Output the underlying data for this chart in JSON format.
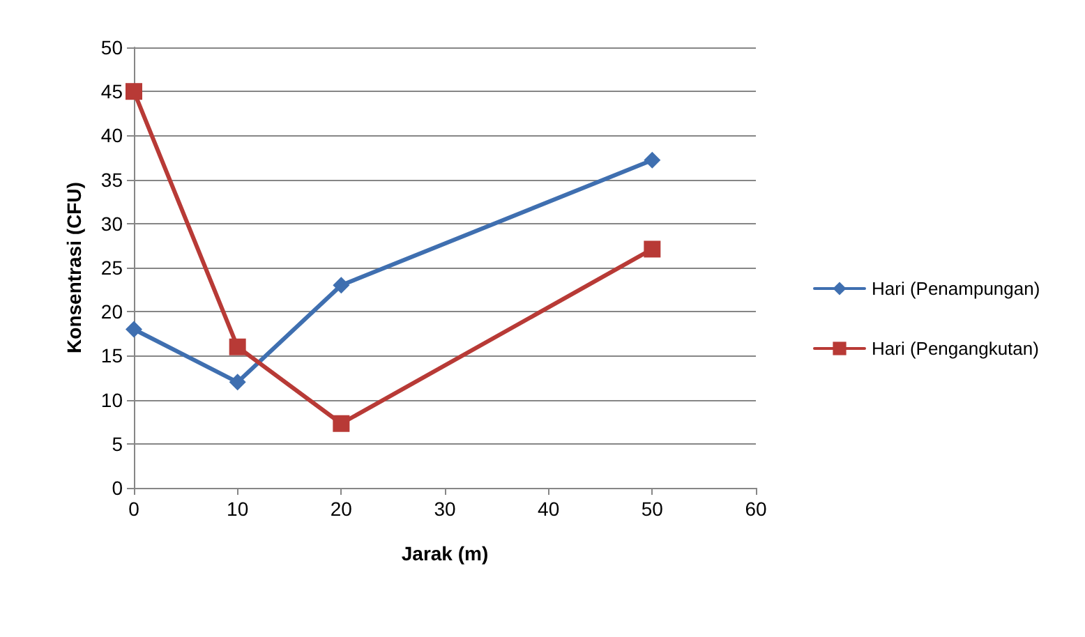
{
  "chart_data": {
    "type": "line",
    "xlabel": "Jarak (m)",
    "ylabel": "Konsentrasi (CFU)",
    "x": [
      0,
      10,
      20,
      50
    ],
    "series": [
      {
        "name": "Hari (Penampungan)",
        "color": "#3f6fb0",
        "marker": "diamond",
        "values": [
          18,
          12,
          23,
          37.2
        ]
      },
      {
        "name": "Hari (Pengangkutan)",
        "color": "#b83a36",
        "marker": "square",
        "values": [
          45,
          16,
          7.3,
          27.1
        ]
      }
    ],
    "xlim": [
      0,
      60
    ],
    "xticks": [
      0,
      10,
      20,
      30,
      40,
      50,
      60
    ],
    "ylim": [
      0,
      50
    ],
    "yticks": [
      0,
      5,
      10,
      15,
      20,
      25,
      30,
      35,
      40,
      45,
      50
    ],
    "grid": "y",
    "legend": "right",
    "line_style": "solid"
  }
}
